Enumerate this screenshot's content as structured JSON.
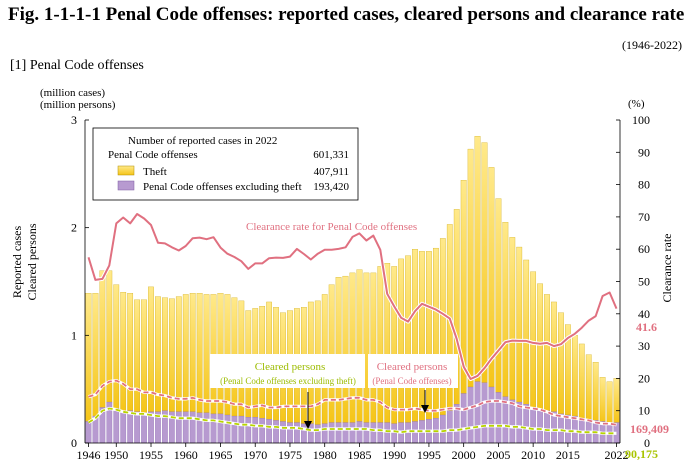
{
  "figure": {
    "title": "Fig. 1-1-1-1    Penal Code offenses: reported cases, cleared persons and clearance rate",
    "period": "(1946-2022)",
    "subtitle": "[1] Penal Code offenses",
    "unit_cases": "(million cases)",
    "unit_persons": "(million persons)",
    "unit_percent": "(%)",
    "ylabel_left_1": "Reported cases",
    "ylabel_left_2": "Cleared persons",
    "ylabel_right": "Clearance rate"
  },
  "legend": {
    "header": "Number of reported cases in 2022",
    "total_label": "Penal Code offenses",
    "total_value": "601,331",
    "theft_label": "Theft",
    "theft_value": "407,911",
    "nontheft_label": "Penal Code offenses excluding theft",
    "nontheft_value": "193,420"
  },
  "annotations": {
    "rate_label": "Clearance rate for Penal Code offenses",
    "cleared_ex_theft_1": "Cleared persons",
    "cleared_ex_theft_2": "(Penal Code offenses excluding theft)",
    "cleared_all_1": "Cleared persons",
    "cleared_all_2": "(Penal Code offenses)",
    "end_rate": "41.6",
    "end_cleared_all": "169,409",
    "end_cleared_ex_theft": "90,175"
  },
  "colors": {
    "theft": "#f5c518",
    "theft_light": "#ffe98a",
    "nontheft": "#b79ad0",
    "rate_line": "#e07080",
    "cleared_all": "#e07080",
    "cleared_ex_theft": "#b8d400"
  },
  "chart_data": {
    "type": "bar",
    "title": "Penal Code offenses: reported cases, cleared persons and clearance rate",
    "xlabel": "",
    "ylabel": "Reported cases / Cleared persons (million)",
    "y2label": "Clearance rate (%)",
    "ylim": [
      0,
      3
    ],
    "y2lim": [
      0,
      100
    ],
    "yticks": [
      "0",
      "1",
      "2",
      "3"
    ],
    "y2ticks": [
      "0",
      "10",
      "20",
      "30",
      "40",
      "50",
      "60",
      "70",
      "80",
      "90",
      "100"
    ],
    "xtick_labels": [
      "1946",
      "1950",
      "1955",
      "1960",
      "1965",
      "1970",
      "1975",
      "1980",
      "1985",
      "1990",
      "1995",
      "2000",
      "2005",
      "2010",
      "2015",
      "2022"
    ],
    "x": [
      1946,
      1947,
      1948,
      1949,
      1950,
      1951,
      1952,
      1953,
      1954,
      1955,
      1956,
      1957,
      1958,
      1959,
      1960,
      1961,
      1962,
      1963,
      1964,
      1965,
      1966,
      1967,
      1968,
      1969,
      1970,
      1971,
      1972,
      1973,
      1974,
      1975,
      1976,
      1977,
      1978,
      1979,
      1980,
      1981,
      1982,
      1983,
      1984,
      1985,
      1986,
      1987,
      1988,
      1989,
      1990,
      1991,
      1992,
      1993,
      1994,
      1995,
      1996,
      1997,
      1998,
      1999,
      2000,
      2001,
      2002,
      2003,
      2004,
      2005,
      2006,
      2007,
      2008,
      2009,
      2010,
      2011,
      2012,
      2013,
      2014,
      2015,
      2016,
      2017,
      2018,
      2019,
      2020,
      2021,
      2022
    ],
    "series": [
      {
        "name": "Penal Code offenses (reported cases, million)",
        "values": [
          1.39,
          1.39,
          1.6,
          1.6,
          1.47,
          1.4,
          1.39,
          1.33,
          1.33,
          1.45,
          1.36,
          1.35,
          1.34,
          1.36,
          1.38,
          1.39,
          1.39,
          1.38,
          1.38,
          1.39,
          1.38,
          1.35,
          1.32,
          1.23,
          1.25,
          1.27,
          1.31,
          1.26,
          1.21,
          1.23,
          1.25,
          1.26,
          1.31,
          1.32,
          1.38,
          1.47,
          1.54,
          1.55,
          1.58,
          1.61,
          1.58,
          1.58,
          1.64,
          1.67,
          1.64,
          1.71,
          1.74,
          1.8,
          1.78,
          1.78,
          1.81,
          1.9,
          2.03,
          2.17,
          2.44,
          2.73,
          2.85,
          2.79,
          2.56,
          2.27,
          2.05,
          1.91,
          1.82,
          1.7,
          1.59,
          1.48,
          1.38,
          1.31,
          1.21,
          1.1,
          1.0,
          0.92,
          0.82,
          0.75,
          0.61,
          0.57,
          0.6
        ]
      },
      {
        "name": "Penal Code offenses excluding theft (reported cases, million)",
        "values": [
          0.2,
          0.25,
          0.33,
          0.38,
          0.32,
          0.3,
          0.3,
          0.29,
          0.28,
          0.29,
          0.29,
          0.3,
          0.29,
          0.29,
          0.29,
          0.29,
          0.28,
          0.28,
          0.27,
          0.27,
          0.26,
          0.25,
          0.25,
          0.24,
          0.24,
          0.23,
          0.22,
          0.21,
          0.2,
          0.19,
          0.19,
          0.18,
          0.18,
          0.17,
          0.18,
          0.19,
          0.19,
          0.19,
          0.19,
          0.2,
          0.19,
          0.19,
          0.19,
          0.19,
          0.18,
          0.19,
          0.19,
          0.2,
          0.21,
          0.22,
          0.23,
          0.26,
          0.3,
          0.36,
          0.46,
          0.52,
          0.57,
          0.56,
          0.52,
          0.47,
          0.43,
          0.4,
          0.38,
          0.36,
          0.33,
          0.31,
          0.3,
          0.29,
          0.27,
          0.26,
          0.25,
          0.23,
          0.22,
          0.21,
          0.2,
          0.19,
          0.19
        ]
      },
      {
        "name": "Clearance rate for Penal Code offenses (%)",
        "values": [
          57.5,
          50.5,
          50.8,
          55.0,
          68.0,
          69.8,
          68.0,
          70.9,
          69.5,
          67.5,
          62.0,
          61.8,
          60.6,
          59.6,
          61.0,
          63.4,
          63.6,
          63.1,
          63.7,
          60.5,
          58.6,
          57.6,
          56.3,
          53.9,
          55.6,
          55.6,
          57.2,
          57.4,
          57.3,
          57.7,
          60.1,
          58.5,
          56.8,
          58.6,
          59.8,
          59.8,
          60.1,
          60.6,
          63.8,
          64.9,
          62.7,
          64.2,
          59.8,
          46.2,
          42.3,
          38.8,
          37.6,
          40.8,
          43.1,
          42.2,
          41.3,
          40.0,
          38.5,
          32.2,
          23.6,
          19.8,
          20.8,
          23.2,
          26.1,
          28.6,
          31.2,
          31.7,
          31.6,
          31.6,
          31.0,
          30.7,
          31.0,
          30.0,
          30.6,
          32.5,
          33.8,
          35.7,
          37.9,
          39.3,
          45.5,
          46.6,
          41.6
        ]
      },
      {
        "name": "Cleared persons, Penal Code offenses (million)",
        "values": [
          0.43,
          0.45,
          0.53,
          0.57,
          0.58,
          0.55,
          0.5,
          0.5,
          0.47,
          0.47,
          0.45,
          0.44,
          0.42,
          0.41,
          0.41,
          0.42,
          0.4,
          0.39,
          0.39,
          0.39,
          0.38,
          0.36,
          0.36,
          0.33,
          0.34,
          0.35,
          0.33,
          0.33,
          0.34,
          0.34,
          0.34,
          0.34,
          0.34,
          0.36,
          0.4,
          0.4,
          0.4,
          0.41,
          0.42,
          0.42,
          0.4,
          0.4,
          0.38,
          0.33,
          0.31,
          0.31,
          0.31,
          0.32,
          0.31,
          0.3,
          0.3,
          0.31,
          0.32,
          0.32,
          0.31,
          0.33,
          0.35,
          0.38,
          0.39,
          0.39,
          0.38,
          0.37,
          0.34,
          0.33,
          0.32,
          0.31,
          0.29,
          0.26,
          0.25,
          0.24,
          0.23,
          0.22,
          0.21,
          0.19,
          0.18,
          0.18,
          0.169
        ]
      },
      {
        "name": "Cleared persons, Penal Code offenses excluding theft (million)",
        "values": [
          0.19,
          0.23,
          0.3,
          0.32,
          0.31,
          0.29,
          0.28,
          0.27,
          0.27,
          0.26,
          0.25,
          0.25,
          0.24,
          0.23,
          0.23,
          0.23,
          0.22,
          0.21,
          0.21,
          0.2,
          0.19,
          0.18,
          0.17,
          0.17,
          0.16,
          0.16,
          0.15,
          0.15,
          0.14,
          0.14,
          0.14,
          0.13,
          0.12,
          0.12,
          0.13,
          0.13,
          0.13,
          0.13,
          0.13,
          0.13,
          0.13,
          0.12,
          0.12,
          0.11,
          0.11,
          0.1,
          0.11,
          0.11,
          0.11,
          0.11,
          0.11,
          0.11,
          0.12,
          0.12,
          0.13,
          0.14,
          0.15,
          0.16,
          0.16,
          0.16,
          0.16,
          0.15,
          0.15,
          0.14,
          0.13,
          0.13,
          0.12,
          0.12,
          0.12,
          0.11,
          0.11,
          0.1,
          0.1,
          0.1,
          0.09,
          0.09,
          0.09
        ]
      }
    ]
  }
}
